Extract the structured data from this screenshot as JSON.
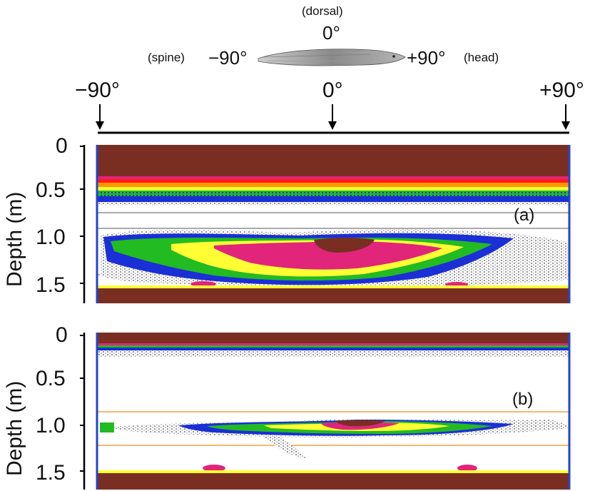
{
  "orientation": {
    "dorsal_label": "(dorsal)",
    "zero_label": "0°",
    "left_label": "(spine)",
    "left_angle": "−90°",
    "right_angle": "+90°",
    "right_label": "(head)"
  },
  "angle_axis": {
    "ticks": [
      "−90°",
      "0°",
      "+90°"
    ]
  },
  "panels": [
    {
      "label": "(a)",
      "ylabel": "Depth (m)",
      "yticks": [
        "0",
        "0.5",
        "1.0",
        "1.5"
      ]
    },
    {
      "label": "(b)",
      "ylabel": "Depth (m)",
      "yticks": [
        "0",
        "0.5",
        "1.0",
        "1.5"
      ]
    }
  ],
  "colors": {
    "brown": "#7a2e22",
    "magenta": "#e0257a",
    "red": "#ff1a1a",
    "orange": "#ff9900",
    "yellow": "#ffff33",
    "green": "#22bb22",
    "blue": "#1a2fd6",
    "gray": "#9a9a9a",
    "frame_blue": "#2244cc",
    "orange_line": "#f4a040"
  }
}
